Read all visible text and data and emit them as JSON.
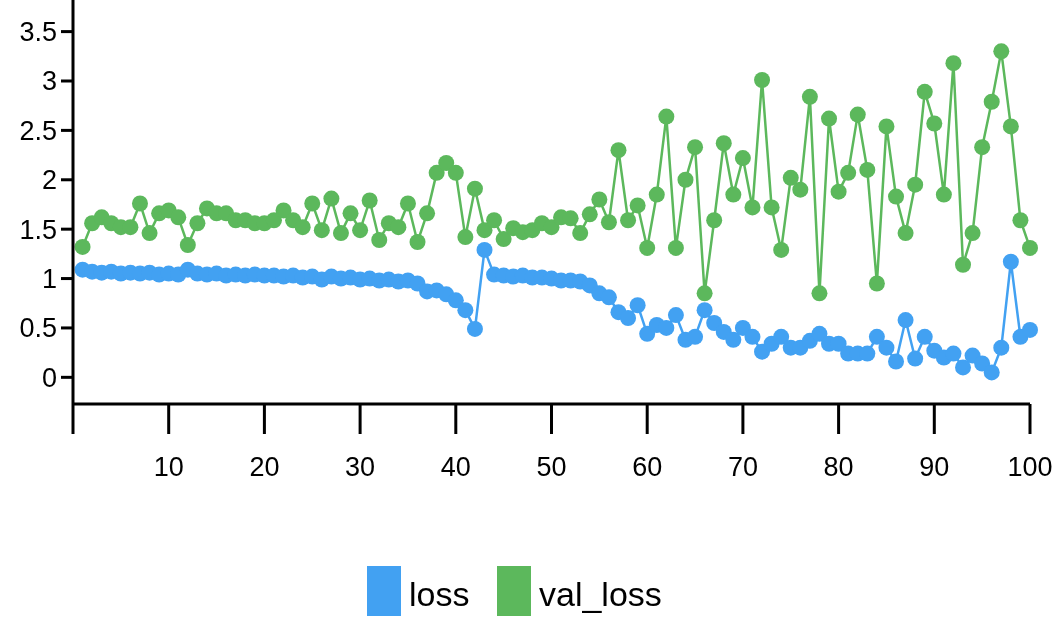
{
  "chart_data": {
    "type": "line",
    "x": [
      1,
      2,
      3,
      4,
      5,
      6,
      7,
      8,
      9,
      10,
      11,
      12,
      13,
      14,
      15,
      16,
      17,
      18,
      19,
      20,
      21,
      22,
      23,
      24,
      25,
      26,
      27,
      28,
      29,
      30,
      31,
      32,
      33,
      34,
      35,
      36,
      37,
      38,
      39,
      40,
      41,
      42,
      43,
      44,
      45,
      46,
      47,
      48,
      49,
      50,
      51,
      52,
      53,
      54,
      55,
      56,
      57,
      58,
      59,
      60,
      61,
      62,
      63,
      64,
      65,
      66,
      67,
      68,
      69,
      70,
      71,
      72,
      73,
      74,
      75,
      76,
      77,
      78,
      79,
      80,
      81,
      82,
      83,
      84,
      85,
      86,
      87,
      88,
      89,
      90,
      91,
      92,
      93,
      94,
      95,
      96,
      97,
      98,
      99,
      100
    ],
    "series": [
      {
        "name": "loss",
        "color": "#42a1f2",
        "values": [
          1.09,
          1.07,
          1.06,
          1.07,
          1.05,
          1.06,
          1.05,
          1.06,
          1.04,
          1.05,
          1.04,
          1.09,
          1.05,
          1.04,
          1.05,
          1.03,
          1.04,
          1.03,
          1.04,
          1.03,
          1.03,
          1.02,
          1.03,
          1.01,
          1.02,
          0.99,
          1.02,
          1.0,
          1.01,
          0.99,
          1.0,
          0.98,
          0.99,
          0.97,
          0.98,
          0.95,
          0.87,
          0.88,
          0.84,
          0.78,
          0.68,
          0.49,
          1.29,
          1.04,
          1.03,
          1.02,
          1.03,
          1.01,
          1.01,
          1.0,
          0.98,
          0.98,
          0.97,
          0.93,
          0.85,
          0.81,
          0.66,
          0.6,
          0.73,
          0.44,
          0.53,
          0.5,
          0.63,
          0.38,
          0.41,
          0.68,
          0.55,
          0.46,
          0.38,
          0.5,
          0.41,
          0.26,
          0.34,
          0.41,
          0.3,
          0.3,
          0.37,
          0.44,
          0.34,
          0.34,
          0.24,
          0.24,
          0.24,
          0.41,
          0.3,
          0.16,
          0.58,
          0.19,
          0.41,
          0.27,
          0.2,
          0.24,
          0.1,
          0.22,
          0.14,
          0.05,
          0.3,
          1.17,
          0.41,
          0.48
        ]
      },
      {
        "name": "val_loss",
        "color": "#5cb85c",
        "values": [
          1.32,
          1.56,
          1.62,
          1.56,
          1.52,
          1.52,
          1.76,
          1.46,
          1.66,
          1.69,
          1.62,
          1.34,
          1.56,
          1.71,
          1.66,
          1.66,
          1.59,
          1.59,
          1.56,
          1.56,
          1.59,
          1.69,
          1.59,
          1.52,
          1.76,
          1.49,
          1.81,
          1.46,
          1.66,
          1.49,
          1.79,
          1.39,
          1.56,
          1.52,
          1.76,
          1.37,
          1.66,
          2.07,
          2.17,
          2.07,
          1.42,
          1.91,
          1.49,
          1.59,
          1.4,
          1.51,
          1.47,
          1.49,
          1.56,
          1.52,
          1.62,
          1.61,
          1.46,
          1.65,
          1.8,
          1.57,
          2.3,
          1.59,
          1.74,
          1.31,
          1.85,
          2.64,
          1.31,
          2.0,
          2.33,
          0.85,
          1.59,
          2.37,
          1.85,
          2.22,
          1.72,
          3.01,
          1.72,
          1.29,
          2.02,
          1.9,
          2.84,
          0.85,
          2.62,
          1.88,
          2.07,
          2.66,
          2.1,
          0.95,
          2.54,
          1.83,
          1.46,
          1.95,
          2.89,
          2.57,
          1.85,
          3.18,
          1.14,
          1.46,
          2.33,
          2.79,
          3.3,
          2.54,
          1.59,
          1.31
        ]
      }
    ],
    "xlim": [
      0,
      100
    ],
    "xticks": [
      {
        "value": 0,
        "label": null
      },
      10,
      20,
      30,
      40,
      50,
      60,
      70,
      80,
      90,
      100
    ],
    "ylim": [
      -0.27,
      3.82
    ],
    "yticks": [
      0,
      0.5,
      1,
      1.5,
      2,
      2.5,
      3,
      3.5
    ],
    "marker": "circle",
    "line_style": "solid",
    "legend": "bottom",
    "grid": false
  }
}
